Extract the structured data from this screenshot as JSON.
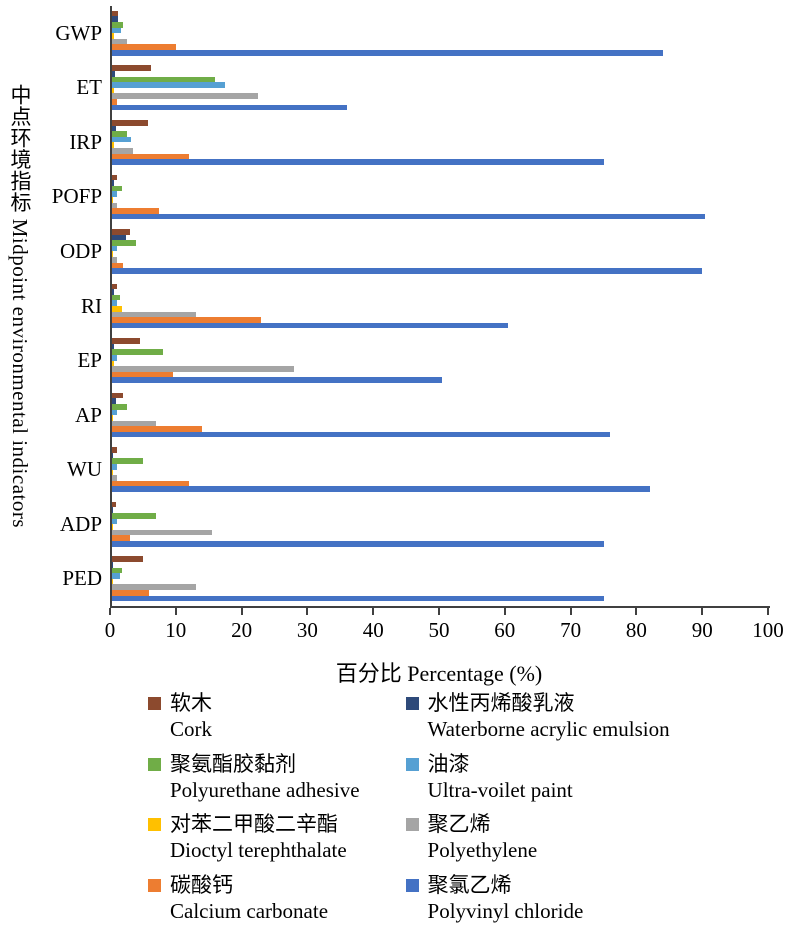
{
  "chart_data": {
    "type": "bar",
    "orientation": "horizontal",
    "title": "",
    "xlabel": "百分比 Percentage (%)",
    "ylabel": "中点环境指标 Midpoint environmental indicators",
    "xlim": [
      0,
      100
    ],
    "xticks": [
      0,
      10,
      20,
      30,
      40,
      50,
      60,
      70,
      80,
      90,
      100
    ],
    "grid": false,
    "legend_position": "bottom",
    "axis_color": "#404040",
    "categories": [
      "GWP",
      "ET",
      "IRP",
      "POFP",
      "ODP",
      "RI",
      "EP",
      "AP",
      "WU",
      "ADP",
      "PED"
    ],
    "series": [
      {
        "name_zh": "软木",
        "name_en": "Cork",
        "color": "#8c4a2e",
        "values": [
          1.2,
          6.2,
          5.8,
          1.0,
          3.0,
          1.0,
          4.5,
          2.0,
          1.0,
          0.9,
          5.0
        ]
      },
      {
        "name_zh": "水性丙烯酸乳液",
        "name_en": "Waterborne acrylic emulsion",
        "color": "#2e4a7a",
        "values": [
          1.2,
          0.8,
          0.9,
          0.6,
          2.4,
          0.6,
          0.6,
          0.9,
          0.5,
          0.5,
          0.5
        ]
      },
      {
        "name_zh": "聚氨酯胶黏剂",
        "name_en": "Polyurethane adhesive",
        "color": "#70ad47",
        "values": [
          2.0,
          16.0,
          2.6,
          1.8,
          4.0,
          1.5,
          8.0,
          2.6,
          5.0,
          7.0,
          1.8
        ]
      },
      {
        "name_zh": "油漆",
        "name_en": "Ultra-voilet paint",
        "color": "#56a0d3",
        "values": [
          1.7,
          17.5,
          3.2,
          1.0,
          1.0,
          1.0,
          1.0,
          1.0,
          1.0,
          1.0,
          1.5
        ]
      },
      {
        "name_zh": "对苯二甲酸二辛酯",
        "name_en": "Dioctyl terephthalate",
        "color": "#ffc000",
        "values": [
          0.6,
          0.6,
          0.6,
          0.5,
          0.5,
          1.8,
          0.6,
          0.5,
          0.5,
          0.5,
          0.5
        ]
      },
      {
        "name_zh": "聚乙烯",
        "name_en": "Polyethylene",
        "color": "#a5a5a5",
        "values": [
          2.6,
          22.5,
          3.5,
          1.0,
          1.0,
          13.0,
          28.0,
          7.0,
          1.0,
          15.5,
          13.0
        ]
      },
      {
        "name_zh": "碳酸钙",
        "name_en": "Calcium carbonate",
        "color": "#ed7d31",
        "values": [
          10.0,
          1.0,
          12.0,
          7.5,
          2.0,
          23.0,
          9.5,
          14.0,
          12.0,
          3.0,
          6.0
        ]
      },
      {
        "name_zh": "聚氯乙烯",
        "name_en": "Polyvinyl chloride",
        "color": "#4472c4",
        "values": [
          84.0,
          36.0,
          75.0,
          90.5,
          90.0,
          60.5,
          50.5,
          76.0,
          82.0,
          75.0,
          75.0
        ]
      }
    ]
  }
}
